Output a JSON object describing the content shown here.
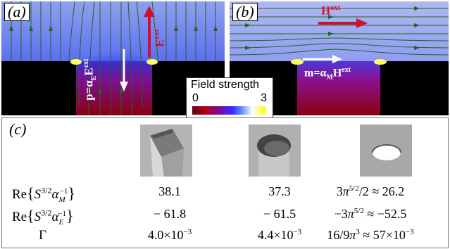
{
  "panel_a": {
    "label": "(a)",
    "field_label": "E",
    "field_sup": "ext",
    "dipole_label": "p=α",
    "dipole_sub": "E",
    "dipole_tail": "E",
    "dipole_sup": "ext"
  },
  "panel_b": {
    "label": "(b)",
    "field_label": "H",
    "field_sup": "ext",
    "dipole_label": "m=α",
    "dipole_sub": "M",
    "dipole_tail": "H",
    "dipole_sup": "ext"
  },
  "colorbar": {
    "title": "Field strength",
    "min": "0",
    "max": "3",
    "colors": [
      "#6a0020",
      "#b00010",
      "#8a0090",
      "#3030ff",
      "#6a8cff",
      "#ffffff",
      "#ffff00"
    ]
  },
  "panel_c": {
    "label": "(c)",
    "shapes": [
      "square-hole",
      "cylindrical-hole",
      "elliptical-aperture"
    ],
    "rows": [
      {
        "label": "Re{S^{3/2}α_M^{-1}}",
        "values": [
          "38.1",
          "37.3",
          "3π^{5/2}/2 ≈ 26.2"
        ]
      },
      {
        "label": "Re{S^{3/2}α_E^{-1}}",
        "values": [
          "− 61.8",
          "− 61.5",
          "−3π^{5/2} ≈ −52.5"
        ]
      },
      {
        "label": "Γ",
        "values": [
          "4.0×10^{-3}",
          "4.4×10^{-3}",
          "16/9π^{3} ≈ 57×10^{-3}"
        ]
      }
    ]
  }
}
